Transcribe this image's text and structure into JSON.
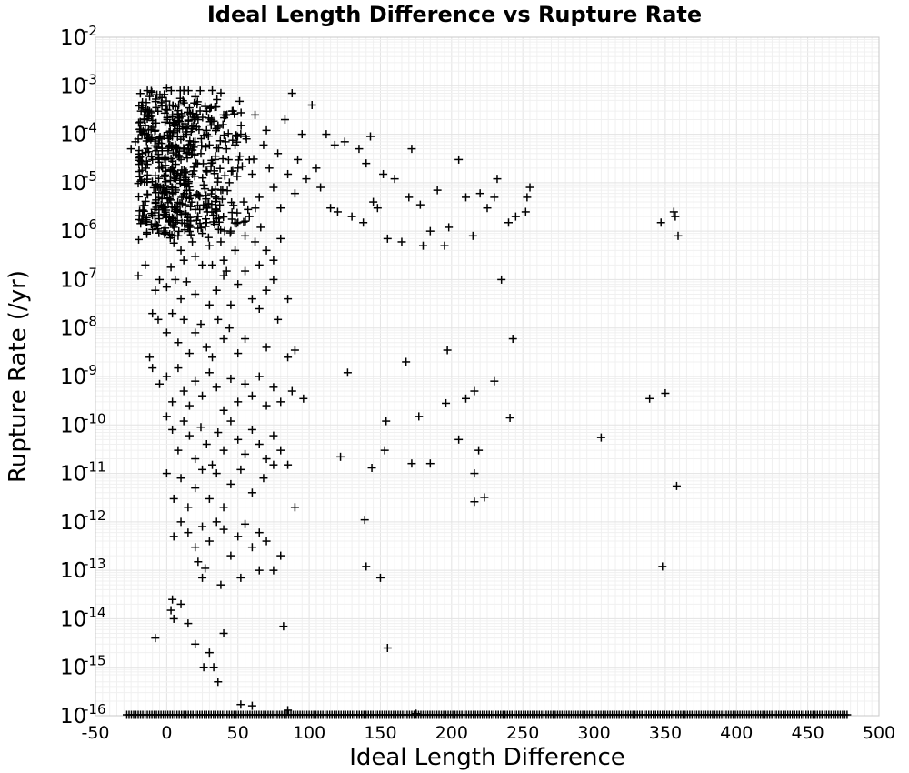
{
  "chart_data": {
    "type": "scatter",
    "title": "Ideal Length Difference vs Rupture Rate",
    "xlabel": "Ideal Length Difference",
    "ylabel": "Rupture Rate (/yr)",
    "xlim": [
      -50,
      500
    ],
    "ylim": [
      1e-16,
      0.01
    ],
    "y_scale": "log",
    "grid": true,
    "marker": "plus",
    "marker_color": "#000000",
    "x_ticks": [
      "-50",
      "0",
      "50",
      "100",
      "150",
      "200",
      "250",
      "300",
      "350",
      "400",
      "450",
      "500"
    ],
    "y_ticks": [
      {
        "base": "10",
        "exp": "-2",
        "value": 0.01
      },
      {
        "base": "10",
        "exp": "-3",
        "value": 0.001
      },
      {
        "base": "10",
        "exp": "-4",
        "value": 0.0001
      },
      {
        "base": "10",
        "exp": "-5",
        "value": 1e-05
      },
      {
        "base": "10",
        "exp": "-6",
        "value": 1e-06
      },
      {
        "base": "10",
        "exp": "-7",
        "value": 1e-07
      },
      {
        "base": "10",
        "exp": "-8",
        "value": 1e-08
      },
      {
        "base": "10",
        "exp": "-9",
        "value": 1e-09
      },
      {
        "base": "10",
        "exp": "-10",
        "value": 1e-10
      },
      {
        "base": "10",
        "exp": "-11",
        "value": 1e-11
      },
      {
        "base": "10",
        "exp": "-12",
        "value": 1e-12
      },
      {
        "base": "10",
        "exp": "-13",
        "value": 1e-13
      },
      {
        "base": "10",
        "exp": "-14",
        "value": 1e-14
      },
      {
        "base": "10",
        "exp": "-15",
        "value": 1e-15
      },
      {
        "base": "10",
        "exp": "-16",
        "value": 1e-16
      }
    ],
    "points": [
      [
        -25,
        5e-05
      ],
      [
        -22,
        7e-05
      ],
      [
        -18,
        0.0003
      ],
      [
        -15,
        0.00015
      ],
      [
        -12,
        0.0006
      ],
      [
        -10,
        3e-05
      ],
      [
        -8,
        0.00012
      ],
      [
        -5,
        8e-05
      ],
      [
        -3,
        2e-05
      ],
      [
        0,
        0.0009
      ],
      [
        2,
        0.0004
      ],
      [
        4,
        0.00025
      ],
      [
        6,
        6e-05
      ],
      [
        8,
        0.00018
      ],
      [
        10,
        3e-05
      ],
      [
        12,
        0.0008
      ],
      [
        14,
        0.0001
      ],
      [
        15,
        5e-05
      ],
      [
        16,
        0.00035
      ],
      [
        18,
        1.5e-05
      ],
      [
        20,
        7e-05
      ],
      [
        22,
        0.0002
      ],
      [
        24,
        4e-05
      ],
      [
        26,
        9e-06
      ],
      [
        28,
        0.00012
      ],
      [
        30,
        6e-05
      ],
      [
        32,
        0.0008
      ],
      [
        34,
        3e-05
      ],
      [
        36,
        0.00015
      ],
      [
        38,
        7e-06
      ],
      [
        40,
        0.00025
      ],
      [
        42,
        5e-05
      ],
      [
        44,
        1e-05
      ],
      [
        46,
        0.0003
      ],
      [
        48,
        6e-05
      ],
      [
        50,
        2e-05
      ],
      [
        52,
        0.0001
      ],
      [
        54,
        4e-06
      ],
      [
        56,
        8e-05
      ],
      [
        58,
        3e-05
      ],
      [
        60,
        1.5e-05
      ],
      [
        62,
        0.00025
      ],
      [
        65,
        5e-06
      ],
      [
        68,
        6e-05
      ],
      [
        70,
        0.00012
      ],
      [
        72,
        2e-05
      ],
      [
        75,
        8e-06
      ],
      [
        78,
        4e-05
      ],
      [
        80,
        3e-06
      ],
      [
        83,
        0.0002
      ],
      [
        85,
        1.5e-05
      ],
      [
        88,
        0.0007
      ],
      [
        90,
        6e-06
      ],
      [
        92,
        3e-05
      ],
      [
        95,
        0.0001
      ],
      [
        98,
        1.2e-05
      ],
      [
        102,
        0.0004
      ],
      [
        105,
        2e-05
      ],
      [
        108,
        8e-06
      ],
      [
        112,
        0.0001
      ],
      [
        115,
        3e-06
      ],
      [
        118,
        6e-05
      ],
      [
        120,
        2.5e-06
      ],
      [
        125,
        7e-05
      ],
      [
        130,
        2e-06
      ],
      [
        135,
        5e-05
      ],
      [
        138,
        1.5e-06
      ],
      [
        140,
        2.5e-05
      ],
      [
        143,
        9e-05
      ],
      [
        145,
        4e-06
      ],
      [
        148,
        3e-06
      ],
      [
        152,
        1.5e-05
      ],
      [
        155,
        7e-07
      ],
      [
        160,
        1.2e-05
      ],
      [
        165,
        6e-07
      ],
      [
        170,
        5e-06
      ],
      [
        172,
        5e-05
      ],
      [
        178,
        3.5e-06
      ],
      [
        180,
        5e-07
      ],
      [
        185,
        1e-06
      ],
      [
        190,
        7e-06
      ],
      [
        195,
        5e-07
      ],
      [
        198,
        1.2e-06
      ],
      [
        205,
        3e-05
      ],
      [
        210,
        5e-06
      ],
      [
        215,
        8e-07
      ],
      [
        220,
        6e-06
      ],
      [
        225,
        3e-06
      ],
      [
        230,
        5e-06
      ],
      [
        232,
        1.2e-05
      ],
      [
        235,
        1e-07
      ],
      [
        240,
        1.5e-06
      ],
      [
        245,
        2e-06
      ],
      [
        252,
        2.5e-06
      ],
      [
        253,
        5e-06
      ],
      [
        255,
        8e-06
      ],
      [
        347,
        1.5e-06
      ],
      [
        356,
        2.5e-06
      ],
      [
        357,
        2e-06
      ],
      [
        359,
        8e-07
      ],
      [
        0,
        2e-06
      ],
      [
        5,
        1.2e-06
      ],
      [
        8,
        8e-07
      ],
      [
        10,
        4e-07
      ],
      [
        12,
        2.5e-07
      ],
      [
        15,
        1.2e-06
      ],
      [
        18,
        6e-07
      ],
      [
        20,
        3e-07
      ],
      [
        22,
        2e-06
      ],
      [
        25,
        9e-07
      ],
      [
        28,
        1.5e-06
      ],
      [
        30,
        5e-07
      ],
      [
        32,
        2e-07
      ],
      [
        35,
        1.8e-06
      ],
      [
        38,
        6e-07
      ],
      [
        40,
        2.5e-07
      ],
      [
        42,
        1.5e-07
      ],
      [
        45,
        1e-06
      ],
      [
        48,
        4e-07
      ],
      [
        50,
        1.5e-06
      ],
      [
        55,
        8e-07
      ],
      [
        58,
        2e-06
      ],
      [
        62,
        6e-07
      ],
      [
        66,
        1.2e-06
      ],
      [
        70,
        4e-07
      ],
      [
        75,
        2.5e-07
      ],
      [
        80,
        7e-07
      ],
      [
        -20,
        1.2e-07
      ],
      [
        -15,
        2e-07
      ],
      [
        -8,
        6e-08
      ],
      [
        -5,
        1e-07
      ],
      [
        0,
        7e-08
      ],
      [
        3,
        1.8e-07
      ],
      [
        6,
        1e-07
      ],
      [
        10,
        4e-08
      ],
      [
        14,
        9e-08
      ],
      [
        20,
        5e-08
      ],
      [
        25,
        2e-07
      ],
      [
        30,
        3e-08
      ],
      [
        35,
        6e-08
      ],
      [
        40,
        1.2e-07
      ],
      [
        45,
        3e-08
      ],
      [
        50,
        8e-08
      ],
      [
        55,
        1.5e-07
      ],
      [
        60,
        4e-08
      ],
      [
        65,
        2e-07
      ],
      [
        70,
        6e-08
      ],
      [
        75,
        1e-07
      ],
      [
        85,
        4e-08
      ],
      [
        -10,
        2e-08
      ],
      [
        -6,
        1.5e-08
      ],
      [
        0,
        8e-09
      ],
      [
        4,
        2e-08
      ],
      [
        8,
        5e-09
      ],
      [
        12,
        1.5e-08
      ],
      [
        16,
        3e-09
      ],
      [
        20,
        8e-09
      ],
      [
        24,
        1.2e-08
      ],
      [
        28,
        4e-09
      ],
      [
        32,
        2.5e-09
      ],
      [
        36,
        1.5e-08
      ],
      [
        40,
        6e-09
      ],
      [
        44,
        1e-08
      ],
      [
        50,
        3e-09
      ],
      [
        55,
        6e-09
      ],
      [
        65,
        2.5e-08
      ],
      [
        70,
        4e-09
      ],
      [
        78,
        1.5e-08
      ],
      [
        85,
        2.5e-09
      ],
      [
        90,
        3.5e-09
      ],
      [
        243,
        6e-09
      ],
      [
        -12,
        2.5e-09
      ],
      [
        -10,
        1.5e-09
      ],
      [
        -5,
        7e-10
      ],
      [
        0,
        1e-09
      ],
      [
        4,
        3e-10
      ],
      [
        8,
        1.5e-09
      ],
      [
        12,
        5e-10
      ],
      [
        16,
        2.5e-10
      ],
      [
        20,
        8e-10
      ],
      [
        25,
        4e-10
      ],
      [
        30,
        1.2e-09
      ],
      [
        35,
        6e-10
      ],
      [
        40,
        2e-10
      ],
      [
        45,
        9e-10
      ],
      [
        50,
        3e-10
      ],
      [
        55,
        7e-10
      ],
      [
        60,
        4e-10
      ],
      [
        65,
        1e-09
      ],
      [
        70,
        2.5e-10
      ],
      [
        75,
        6e-10
      ],
      [
        80,
        3e-10
      ],
      [
        88,
        5e-10
      ],
      [
        96,
        3.5e-10
      ],
      [
        127,
        1.2e-09
      ],
      [
        168,
        2e-09
      ],
      [
        197,
        3.5e-09
      ],
      [
        210,
        3.5e-10
      ],
      [
        216,
        5e-10
      ],
      [
        230,
        8e-10
      ],
      [
        339,
        3.5e-10
      ],
      [
        350,
        4.5e-10
      ],
      [
        0,
        1.5e-10
      ],
      [
        4,
        8e-11
      ],
      [
        8,
        3e-11
      ],
      [
        12,
        1.2e-10
      ],
      [
        16,
        6e-11
      ],
      [
        20,
        2e-11
      ],
      [
        24,
        9e-11
      ],
      [
        28,
        4e-11
      ],
      [
        32,
        1.5e-11
      ],
      [
        36,
        7e-11
      ],
      [
        40,
        3e-11
      ],
      [
        45,
        1.2e-10
      ],
      [
        50,
        5e-11
      ],
      [
        55,
        2.5e-11
      ],
      [
        60,
        8e-11
      ],
      [
        65,
        4e-11
      ],
      [
        70,
        2e-11
      ],
      [
        75,
        6e-11
      ],
      [
        80,
        3e-11
      ],
      [
        154,
        1.2e-10
      ],
      [
        177,
        1.5e-10
      ],
      [
        196,
        2.8e-10
      ],
      [
        205,
        5e-11
      ],
      [
        241,
        1.4e-10
      ],
      [
        305,
        5.5e-11
      ],
      [
        122,
        2.2e-11
      ],
      [
        153,
        3e-11
      ],
      [
        219,
        3e-11
      ],
      [
        0,
        1e-11
      ],
      [
        5,
        3e-12
      ],
      [
        10,
        8e-12
      ],
      [
        15,
        2e-12
      ],
      [
        20,
        5e-12
      ],
      [
        25,
        1.2e-11
      ],
      [
        30,
        3e-12
      ],
      [
        35,
        1e-11
      ],
      [
        40,
        2e-12
      ],
      [
        45,
        6e-12
      ],
      [
        52,
        1.2e-11
      ],
      [
        60,
        4e-12
      ],
      [
        68,
        8e-12
      ],
      [
        75,
        1.5e-11
      ],
      [
        85,
        1.5e-11
      ],
      [
        90,
        2e-12
      ],
      [
        144,
        1.3e-11
      ],
      [
        172,
        1.6e-11
      ],
      [
        185,
        1.6e-11
      ],
      [
        216,
        1e-11
      ],
      [
        216,
        2.6e-12
      ],
      [
        223,
        3.2e-12
      ],
      [
        358,
        5.5e-12
      ],
      [
        5,
        5e-13
      ],
      [
        10,
        1e-12
      ],
      [
        15,
        6e-13
      ],
      [
        20,
        3e-13
      ],
      [
        25,
        8e-13
      ],
      [
        30,
        4e-13
      ],
      [
        35,
        1e-12
      ],
      [
        40,
        7e-13
      ],
      [
        45,
        2e-13
      ],
      [
        50,
        5e-13
      ],
      [
        55,
        9e-13
      ],
      [
        60,
        3e-13
      ],
      [
        65,
        6e-13
      ],
      [
        70,
        4e-13
      ],
      [
        75,
        1e-13
      ],
      [
        80,
        2e-13
      ],
      [
        139,
        1.1e-12
      ],
      [
        140,
        1.2e-13
      ],
      [
        150,
        7e-14
      ],
      [
        348,
        1.2e-13
      ],
      [
        22,
        1.5e-13
      ],
      [
        25,
        7e-14
      ],
      [
        27,
        1.1e-13
      ],
      [
        38,
        5e-14
      ],
      [
        52,
        7e-14
      ],
      [
        65,
        1e-13
      ],
      [
        3,
        1.5e-14
      ],
      [
        4,
        2.5e-14
      ],
      [
        5,
        1e-14
      ],
      [
        10,
        2e-14
      ],
      [
        15,
        8e-15
      ],
      [
        20,
        3e-15
      ],
      [
        -8,
        4e-15
      ],
      [
        40,
        5e-15
      ],
      [
        82,
        7e-15
      ],
      [
        155,
        2.5e-15
      ],
      [
        30,
        2e-15
      ],
      [
        36,
        5e-16
      ],
      [
        33,
        1e-15
      ],
      [
        26,
        1e-15
      ],
      [
        52,
        1.7e-16
      ],
      [
        60,
        1.6e-16
      ],
      [
        85,
        1.3e-16
      ],
      [
        175,
        1.1e-16
      ]
    ],
    "floor_points": {
      "y": 1e-16,
      "x_range": [
        -28,
        478
      ]
    }
  }
}
